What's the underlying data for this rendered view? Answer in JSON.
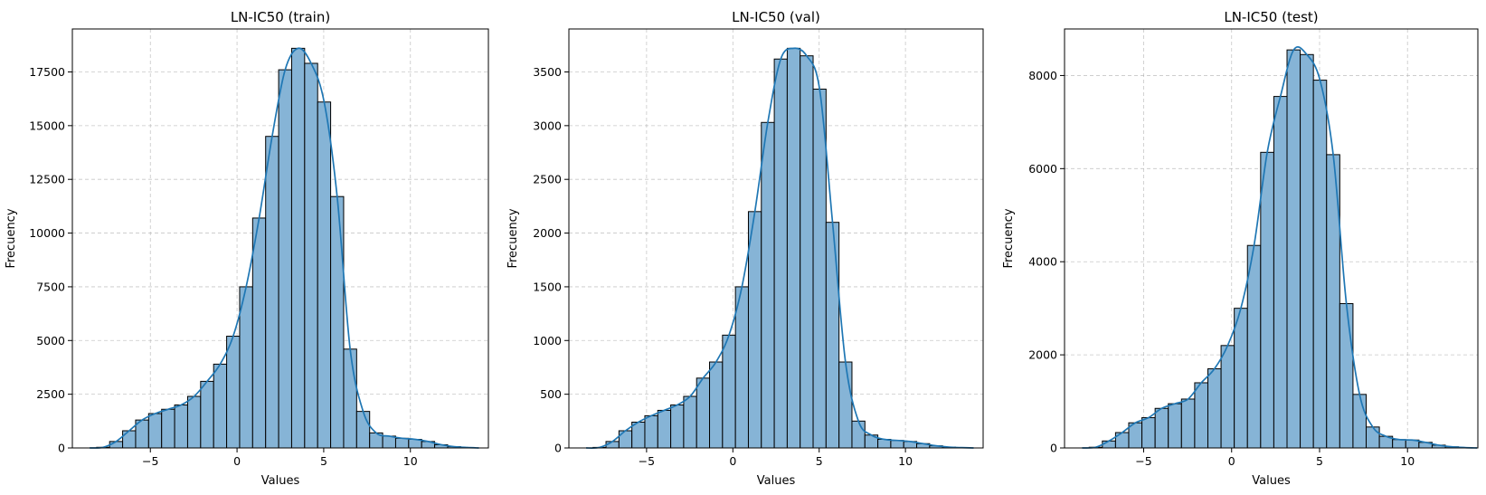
{
  "chart_data": [
    {
      "type": "bar",
      "title": "LN-IC50 (train)",
      "xlabel": "Values",
      "ylabel": "Frecuency",
      "xlim": [
        -9.5,
        14.5
      ],
      "ylim": [
        0,
        19500
      ],
      "xticks": [
        -5,
        0,
        5,
        10
      ],
      "yticks": [
        0,
        2500,
        5000,
        7500,
        10000,
        12500,
        15000,
        17500
      ],
      "grid": true,
      "bin_start": -8.1,
      "bin_width": 0.75,
      "values": [
        30,
        300,
        800,
        1300,
        1600,
        1800,
        2000,
        2400,
        3100,
        3900,
        5200,
        7500,
        10700,
        14500,
        17600,
        18600,
        17900,
        16100,
        11700,
        4600,
        1700,
        700,
        550,
        450,
        400,
        300,
        150,
        60,
        20
      ],
      "kde_color": "#1f77b4",
      "bar_color": "#86b4d6"
    },
    {
      "type": "bar",
      "title": "LN-IC50 (val)",
      "xlabel": "Values",
      "ylabel": "Frecuency",
      "xlim": [
        -9.5,
        14.5
      ],
      "ylim": [
        0,
        3900
      ],
      "xticks": [
        -5,
        0,
        5,
        10
      ],
      "yticks": [
        0,
        500,
        1000,
        1500,
        2000,
        2500,
        3000,
        3500
      ],
      "grid": true,
      "bin_start": -8.1,
      "bin_width": 0.75,
      "values": [
        5,
        60,
        160,
        240,
        300,
        350,
        400,
        480,
        650,
        800,
        1050,
        1500,
        2200,
        3030,
        3620,
        3720,
        3650,
        3340,
        2100,
        800,
        250,
        120,
        80,
        70,
        60,
        40,
        20,
        8,
        3
      ],
      "kde_color": "#1f77b4",
      "bar_color": "#86b4d6"
    },
    {
      "type": "bar",
      "title": "LN-IC50 (test)",
      "xlabel": "Values",
      "ylabel": "Frecuency",
      "xlim": [
        -9.5,
        14
      ],
      "ylim": [
        0,
        9000
      ],
      "xticks": [
        -5,
        0,
        5,
        10
      ],
      "yticks": [
        0,
        2000,
        4000,
        6000,
        8000
      ],
      "grid": true,
      "bin_start": -8.1,
      "bin_width": 0.75,
      "values": [
        15,
        150,
        330,
        540,
        650,
        850,
        950,
        1050,
        1400,
        1700,
        2200,
        3000,
        4350,
        6350,
        7550,
        8550,
        8450,
        7900,
        6300,
        3100,
        1150,
        450,
        250,
        180,
        170,
        120,
        60,
        25,
        8
      ],
      "kde_color": "#1f77b4",
      "bar_color": "#86b4d6"
    }
  ]
}
